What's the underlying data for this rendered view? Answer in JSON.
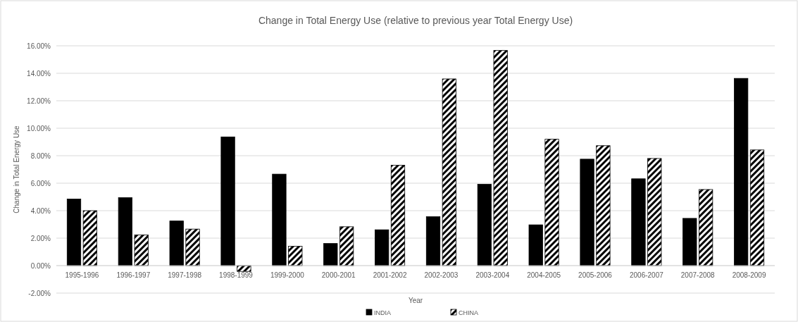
{
  "chart_data": {
    "type": "bar",
    "title": "Change in Total Energy Use (relative to previous year Total Energy Use)",
    "xlabel": "Year",
    "ylabel": "Change in Total Energy Use",
    "categories": [
      "1995-1996",
      "1996-1997",
      "1997-1998",
      "1998-1999",
      "1999-2000",
      "2000-2001",
      "2001-2002",
      "2002-2003",
      "2003-2004",
      "2004-2005",
      "2005-2006",
      "2006-2007",
      "2007-2008",
      "2008-2009"
    ],
    "series": [
      {
        "name": "INDIA",
        "color": "#000000",
        "values": [
          4.85,
          4.95,
          3.25,
          9.37,
          6.66,
          1.61,
          2.61,
          3.56,
          5.92,
          2.97,
          7.75,
          6.32,
          3.44,
          13.63
        ]
      },
      {
        "name": "CHINA",
        "color": "#000000",
        "values": [
          4.0,
          2.24,
          2.66,
          -0.42,
          1.41,
          2.83,
          7.31,
          13.59,
          15.66,
          9.2,
          8.73,
          7.8,
          5.54,
          8.42
        ]
      }
    ],
    "ylim": [
      -2,
      16
    ],
    "yticks": [
      {
        "value": -2,
        "label": "-2.00%"
      },
      {
        "value": 0,
        "label": "0.00%"
      },
      {
        "value": 2,
        "label": "2.00%"
      },
      {
        "value": 4,
        "label": "4.00%"
      },
      {
        "value": 6,
        "label": "6.00%"
      },
      {
        "value": 8,
        "label": "8.00%"
      },
      {
        "value": 10,
        "label": "10.00%"
      },
      {
        "value": 12,
        "label": "12.00%"
      },
      {
        "value": 14,
        "label": "14.00%"
      },
      {
        "value": 16,
        "label": "16.00%"
      }
    ],
    "grid": "y",
    "legend": "bottom"
  }
}
